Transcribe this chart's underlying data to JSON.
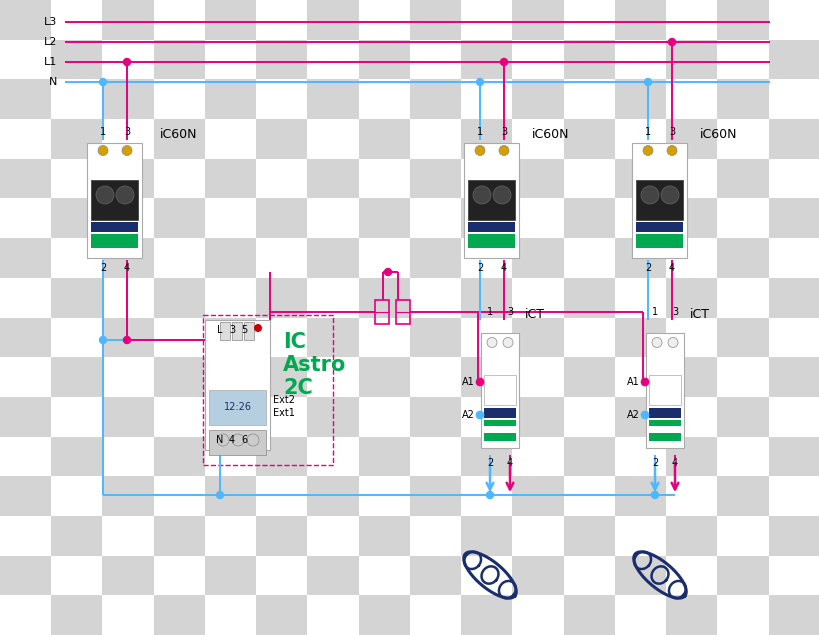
{
  "pink": "#e6007e",
  "blue": "#4db8ff",
  "dark_blue": "#1a2e6e",
  "green": "#00a850",
  "black": "#000000",
  "gray_light": "#cccccc",
  "gray_mid": "#999999",
  "bg_check1": "#ffffff",
  "bg_check2": "#d8d8d8",
  "ic60n_label": "iC60N",
  "ict_label": "iCT",
  "astro_label": "IC\nAstro\n2C",
  "bus_labels": [
    "L3",
    "L2",
    "L1",
    "N"
  ],
  "terminal_labels_top": [
    "L",
    "3",
    "5"
  ],
  "terminal_labels_bot": [
    "N",
    "4",
    "6"
  ],
  "ext_labels": [
    "Ext2",
    "Ext1"
  ],
  "pin_labels_ic60n": [
    "1",
    "3",
    "2",
    "4"
  ],
  "pin_labels_ict": [
    "1",
    "3",
    "A1",
    "A2",
    "2",
    "4"
  ]
}
